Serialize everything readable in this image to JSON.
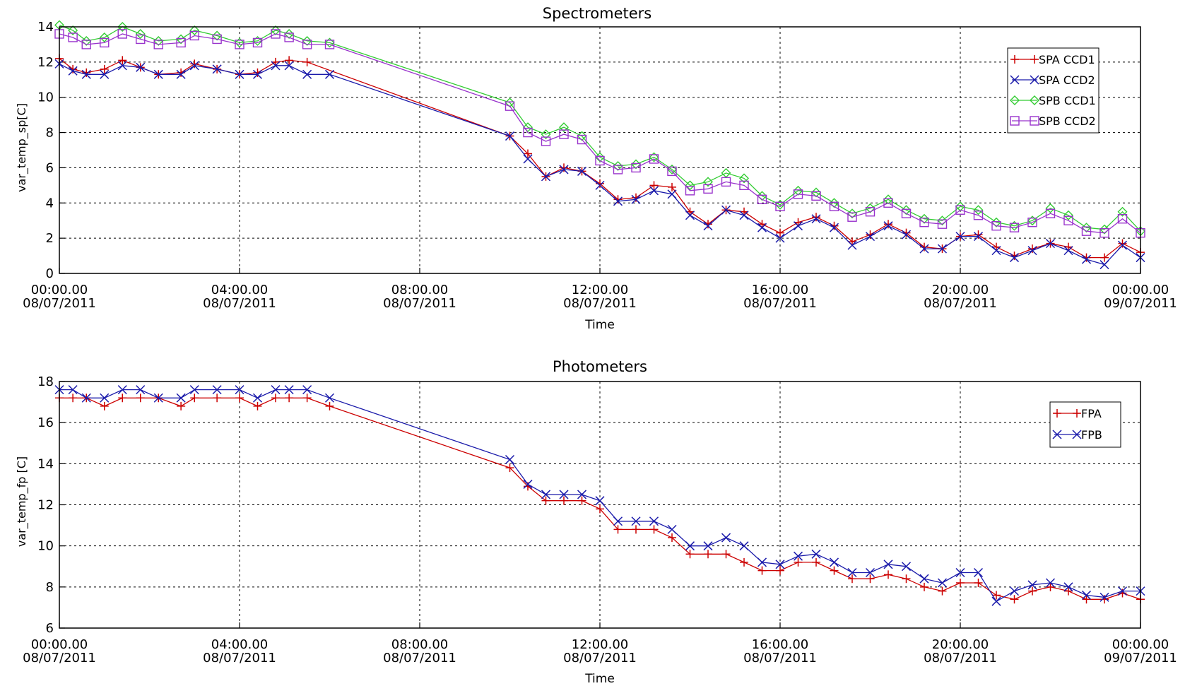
{
  "chart_data": [
    {
      "type": "line",
      "title": "Spectrometers",
      "xlabel": "Time",
      "ylabel": "var_temp_sp[C]",
      "xlim": [
        0,
        24
      ],
      "ylim": [
        0,
        14
      ],
      "grid": true,
      "legend_position": "top-right",
      "xticks": [
        {
          "value": 0,
          "time": "00:00.00",
          "date": "08/07/2011"
        },
        {
          "value": 4,
          "time": "04:00.00",
          "date": "08/07/2011"
        },
        {
          "value": 8,
          "time": "08:00.00",
          "date": "08/07/2011"
        },
        {
          "value": 12,
          "time": "12:00.00",
          "date": "08/07/2011"
        },
        {
          "value": 16,
          "time": "16:00.00",
          "date": "08/07/2011"
        },
        {
          "value": 20,
          "time": "20:00.00",
          "date": "08/07/2011"
        },
        {
          "value": 24,
          "time": "00:00.00",
          "date": "09/07/2011"
        }
      ],
      "yticks": [
        0,
        2,
        4,
        6,
        8,
        10,
        12,
        14
      ],
      "series": [
        {
          "name": "SPA CCD1",
          "color": "#cc0000",
          "marker": "plus",
          "x": [
            0,
            0.3,
            0.6,
            1.0,
            1.4,
            1.8,
            2.2,
            2.7,
            3.0,
            3.5,
            4.0,
            4.4,
            4.8,
            5.1,
            5.5,
            10.0,
            10.4,
            10.8,
            11.2,
            11.6,
            12.0,
            12.4,
            12.8,
            13.2,
            13.6,
            14.0,
            14.4,
            14.8,
            15.2,
            15.6,
            16.0,
            16.4,
            16.8,
            17.2,
            17.6,
            18.0,
            18.4,
            18.8,
            19.2,
            19.6,
            20.0,
            20.4,
            20.8,
            21.2,
            21.6,
            22.0,
            22.4,
            22.8,
            23.2,
            23.6,
            24.0
          ],
          "values": [
            12.2,
            11.6,
            11.4,
            11.6,
            12.1,
            11.7,
            11.3,
            11.4,
            11.9,
            11.6,
            11.3,
            11.4,
            12.0,
            12.1,
            12.0,
            7.8,
            6.8,
            5.5,
            6.0,
            5.8,
            5.1,
            4.2,
            4.3,
            5.0,
            4.9,
            3.5,
            2.8,
            3.6,
            3.5,
            2.8,
            2.3,
            2.9,
            3.2,
            2.7,
            1.8,
            2.2,
            2.8,
            2.3,
            1.5,
            1.4,
            2.1,
            2.2,
            1.5,
            1.0,
            1.4,
            1.7,
            1.5,
            0.9,
            0.9,
            1.7,
            1.2
          ]
        },
        {
          "name": "SPA CCD2",
          "color": "#1a1aaa",
          "marker": "x",
          "x": [
            0,
            0.3,
            0.6,
            1.0,
            1.4,
            1.8,
            2.2,
            2.7,
            3.0,
            3.5,
            4.0,
            4.4,
            4.8,
            5.1,
            5.5,
            6.0,
            10.0,
            10.4,
            10.8,
            11.2,
            11.6,
            12.0,
            12.4,
            12.8,
            13.2,
            13.6,
            14.0,
            14.4,
            14.8,
            15.2,
            15.6,
            16.0,
            16.4,
            16.8,
            17.2,
            17.6,
            18.0,
            18.4,
            18.8,
            19.2,
            19.6,
            20.0,
            20.4,
            20.8,
            21.2,
            21.6,
            22.0,
            22.4,
            22.8,
            23.2,
            23.6,
            24.0
          ],
          "values": [
            11.9,
            11.5,
            11.3,
            11.3,
            11.8,
            11.7,
            11.3,
            11.3,
            11.8,
            11.6,
            11.3,
            11.3,
            11.8,
            11.8,
            11.3,
            11.3,
            7.8,
            6.5,
            5.5,
            5.9,
            5.8,
            5.0,
            4.1,
            4.2,
            4.7,
            4.5,
            3.3,
            2.7,
            3.6,
            3.3,
            2.6,
            2.0,
            2.7,
            3.1,
            2.6,
            1.6,
            2.1,
            2.7,
            2.2,
            1.4,
            1.4,
            2.1,
            2.1,
            1.3,
            0.9,
            1.3,
            1.7,
            1.3,
            0.8,
            0.5,
            1.6,
            0.9
          ]
        },
        {
          "name": "SPB CCD1",
          "color": "#33cc33",
          "marker": "diamond",
          "x": [
            0,
            0.3,
            0.6,
            1.0,
            1.4,
            1.8,
            2.2,
            2.7,
            3.0,
            3.5,
            4.0,
            4.4,
            4.8,
            5.1,
            5.5,
            6.0,
            10.0,
            10.4,
            10.8,
            11.2,
            11.6,
            12.0,
            12.4,
            12.8,
            13.2,
            13.6,
            14.0,
            14.4,
            14.8,
            15.2,
            15.6,
            16.0,
            16.4,
            16.8,
            17.2,
            17.6,
            18.0,
            18.4,
            18.8,
            19.2,
            19.6,
            20.0,
            20.4,
            20.8,
            21.2,
            21.6,
            22.0,
            22.4,
            22.8,
            23.2,
            23.6,
            24.0
          ],
          "values": [
            14.1,
            13.8,
            13.2,
            13.4,
            14.0,
            13.6,
            13.2,
            13.3,
            13.8,
            13.5,
            13.1,
            13.2,
            13.8,
            13.6,
            13.2,
            13.1,
            9.7,
            8.3,
            7.9,
            8.3,
            7.8,
            6.6,
            6.1,
            6.2,
            6.6,
            5.9,
            5.0,
            5.2,
            5.7,
            5.4,
            4.4,
            3.9,
            4.7,
            4.6,
            4.0,
            3.4,
            3.7,
            4.2,
            3.6,
            3.1,
            3.0,
            3.8,
            3.6,
            2.9,
            2.7,
            3.0,
            3.7,
            3.3,
            2.6,
            2.5,
            3.5,
            2.4
          ]
        },
        {
          "name": "SPB CCD2",
          "color": "#9933cc",
          "marker": "square",
          "x": [
            0,
            0.3,
            0.6,
            1.0,
            1.4,
            1.8,
            2.2,
            2.7,
            3.0,
            3.5,
            4.0,
            4.4,
            4.8,
            5.1,
            5.5,
            6.0,
            10.0,
            10.4,
            10.8,
            11.2,
            11.6,
            12.0,
            12.4,
            12.8,
            13.2,
            13.6,
            14.0,
            14.4,
            14.8,
            15.2,
            15.6,
            16.0,
            16.4,
            16.8,
            17.2,
            17.6,
            18.0,
            18.4,
            18.8,
            19.2,
            19.6,
            20.0,
            20.4,
            20.8,
            21.2,
            21.6,
            22.0,
            22.4,
            22.8,
            23.2,
            23.6,
            24.0
          ],
          "values": [
            13.6,
            13.4,
            13.0,
            13.1,
            13.6,
            13.3,
            13.0,
            13.1,
            13.5,
            13.3,
            13.0,
            13.1,
            13.6,
            13.4,
            13.0,
            13.0,
            9.5,
            8.0,
            7.5,
            7.9,
            7.6,
            6.4,
            5.9,
            6.0,
            6.5,
            5.8,
            4.7,
            4.8,
            5.2,
            5.0,
            4.2,
            3.8,
            4.5,
            4.4,
            3.8,
            3.2,
            3.5,
            4.0,
            3.4,
            2.9,
            2.8,
            3.6,
            3.3,
            2.7,
            2.6,
            2.9,
            3.4,
            3.0,
            2.4,
            2.3,
            3.1,
            2.3
          ]
        }
      ]
    },
    {
      "type": "line",
      "title": "Photometers",
      "xlabel": "Time",
      "ylabel": "var_temp_fp [C]",
      "xlim": [
        0,
        24
      ],
      "ylim": [
        6,
        18
      ],
      "grid": true,
      "legend_position": "top-right",
      "xticks": [
        {
          "value": 0,
          "time": "00:00.00",
          "date": "08/07/2011"
        },
        {
          "value": 4,
          "time": "04:00.00",
          "date": "08/07/2011"
        },
        {
          "value": 8,
          "time": "08:00.00",
          "date": "08/07/2011"
        },
        {
          "value": 12,
          "time": "12:00.00",
          "date": "08/07/2011"
        },
        {
          "value": 16,
          "time": "16:00.00",
          "date": "08/07/2011"
        },
        {
          "value": 20,
          "time": "20:00.00",
          "date": "08/07/2011"
        },
        {
          "value": 24,
          "time": "00:00.00",
          "date": "09/07/2011"
        }
      ],
      "yticks": [
        6,
        8,
        10,
        12,
        14,
        16,
        18
      ],
      "series": [
        {
          "name": "FPA",
          "color": "#cc0000",
          "marker": "plus",
          "x": [
            0,
            0.3,
            0.6,
            1.0,
            1.4,
            1.8,
            2.2,
            2.7,
            3.0,
            3.5,
            4.0,
            4.4,
            4.8,
            5.1,
            5.5,
            6.0,
            10.0,
            10.4,
            10.8,
            11.2,
            11.6,
            12.0,
            12.4,
            12.8,
            13.2,
            13.6,
            14.0,
            14.4,
            14.8,
            15.2,
            15.6,
            16.0,
            16.4,
            16.8,
            17.2,
            17.6,
            18.0,
            18.4,
            18.8,
            19.2,
            19.6,
            20.0,
            20.4,
            20.8,
            21.2,
            21.6,
            22.0,
            22.4,
            22.8,
            23.2,
            23.6,
            24.0
          ],
          "values": [
            17.2,
            17.2,
            17.2,
            16.8,
            17.2,
            17.2,
            17.2,
            16.8,
            17.2,
            17.2,
            17.2,
            16.8,
            17.2,
            17.2,
            17.2,
            16.8,
            13.8,
            12.9,
            12.2,
            12.2,
            12.2,
            11.8,
            10.8,
            10.8,
            10.8,
            10.4,
            9.6,
            9.6,
            9.6,
            9.2,
            8.8,
            8.8,
            9.2,
            9.2,
            8.8,
            8.4,
            8.4,
            8.6,
            8.4,
            8.0,
            7.8,
            8.2,
            8.2,
            7.6,
            7.4,
            7.8,
            8.0,
            7.8,
            7.4,
            7.4,
            7.7,
            7.4
          ]
        },
        {
          "name": "FPB",
          "color": "#1a1aaa",
          "marker": "x",
          "x": [
            0,
            0.3,
            0.6,
            1.0,
            1.4,
            1.8,
            2.2,
            2.7,
            3.0,
            3.5,
            4.0,
            4.4,
            4.8,
            5.1,
            5.5,
            6.0,
            10.0,
            10.4,
            10.8,
            11.2,
            11.6,
            12.0,
            12.4,
            12.8,
            13.2,
            13.6,
            14.0,
            14.4,
            14.8,
            15.2,
            15.6,
            16.0,
            16.4,
            16.8,
            17.2,
            17.6,
            18.0,
            18.4,
            18.8,
            19.2,
            19.6,
            20.0,
            20.4,
            20.8,
            21.2,
            21.6,
            22.0,
            22.4,
            22.8,
            23.2,
            23.6,
            24.0
          ],
          "values": [
            17.6,
            17.6,
            17.2,
            17.2,
            17.6,
            17.6,
            17.2,
            17.2,
            17.6,
            17.6,
            17.6,
            17.2,
            17.6,
            17.6,
            17.6,
            17.2,
            14.2,
            13.0,
            12.5,
            12.5,
            12.5,
            12.2,
            11.2,
            11.2,
            11.2,
            10.8,
            10.0,
            10.0,
            10.4,
            10.0,
            9.2,
            9.1,
            9.5,
            9.6,
            9.2,
            8.7,
            8.7,
            9.1,
            9.0,
            8.4,
            8.2,
            8.7,
            8.7,
            7.3,
            7.8,
            8.1,
            8.2,
            8.0,
            7.6,
            7.5,
            7.8,
            7.8
          ]
        }
      ]
    }
  ]
}
